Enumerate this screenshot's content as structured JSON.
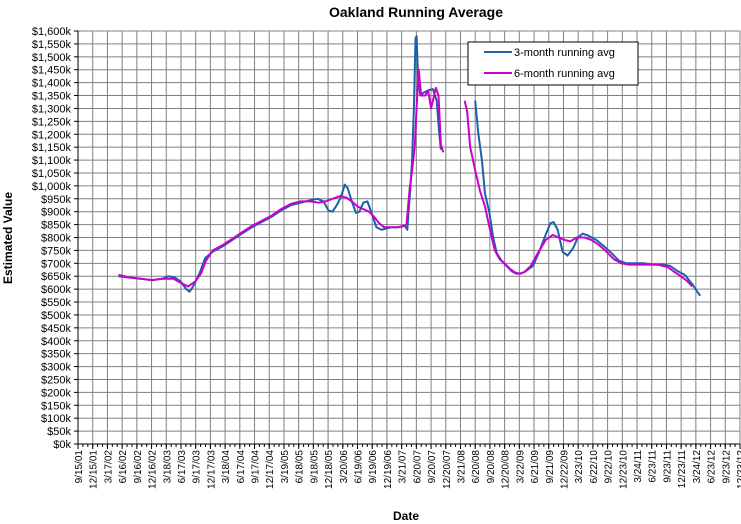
{
  "chart_data": {
    "type": "line",
    "title": "Oakland Running Average",
    "xlabel": "Date",
    "ylabel": "Estimated Value",
    "ylim": [
      0,
      1600000
    ],
    "yticks": [
      "$0k",
      "$50k",
      "$100k",
      "$150k",
      "$200k",
      "$250k",
      "$300k",
      "$350k",
      "$400k",
      "$450k",
      "$500k",
      "$550k",
      "$600k",
      "$650k",
      "$700k",
      "$750k",
      "$800k",
      "$850k",
      "$900k",
      "$950k",
      "$1,000k",
      "$1,050k",
      "$1,100k",
      "$1,150k",
      "$1,200k",
      "$1,250k",
      "$1,300k",
      "$1,350k",
      "$1,400k",
      "$1,450k",
      "$1,500k",
      "$1,550k",
      "$1,600k"
    ],
    "xlim": [
      "2001-09-15",
      "2012-12-23"
    ],
    "xticks": [
      "9/15/01",
      "12/15/01",
      "3/17/02",
      "6/16/02",
      "9/16/02",
      "12/16/02",
      "3/18/03",
      "6/17/03",
      "9/17/03",
      "12/17/03",
      "3/18/04",
      "6/17/04",
      "9/17/04",
      "12/17/04",
      "3/19/05",
      "6/18/05",
      "9/18/05",
      "12/18/05",
      "3/20/06",
      "6/19/06",
      "9/19/06",
      "12/19/06",
      "3/21/07",
      "6/20/07",
      "9/20/07",
      "12/20/07",
      "3/21/08",
      "6/20/08",
      "9/20/08",
      "12/20/08",
      "3/22/09",
      "6/21/09",
      "9/21/09",
      "12/22/09",
      "3/23/10",
      "6/22/10",
      "9/22/10",
      "12/23/10",
      "3/24/11",
      "6/23/11",
      "9/23/11",
      "12/23/11",
      "3/24/12",
      "6/23/12",
      "9/23/12",
      "12/23/12"
    ],
    "grid": true,
    "legend": "top-right",
    "series": [
      {
        "name": "3-month running avg",
        "color": "#1F5FA8",
        "segments": [
          [
            [
              "2002-05-25",
              650000
            ],
            [
              "2002-08-01",
              645000
            ],
            [
              "2002-10-10",
              640000
            ],
            [
              "2002-12-20",
              635000
            ],
            [
              "2003-02-20",
              640000
            ],
            [
              "2003-04-01",
              650000
            ],
            [
              "2003-05-10",
              645000
            ],
            [
              "2003-06-15",
              630000
            ],
            [
              "2003-07-20",
              600000
            ],
            [
              "2003-08-10",
              590000
            ],
            [
              "2003-09-01",
              610000
            ],
            [
              "2003-10-10",
              660000
            ],
            [
              "2003-11-15",
              720000
            ],
            [
              "2003-12-31",
              745000
            ],
            [
              "2004-03-01",
              765000
            ],
            [
              "2004-05-01",
              790000
            ],
            [
              "2004-07-01",
              815000
            ],
            [
              "2004-09-01",
              840000
            ],
            [
              "2004-11-01",
              860000
            ],
            [
              "2005-01-01",
              880000
            ],
            [
              "2005-03-01",
              905000
            ],
            [
              "2005-05-01",
              925000
            ],
            [
              "2005-07-01",
              935000
            ],
            [
              "2005-09-01",
              945000
            ],
            [
              "2005-10-15",
              950000
            ],
            [
              "2005-11-20",
              940000
            ],
            [
              "2005-12-20",
              905000
            ],
            [
              "2006-01-15",
              900000
            ],
            [
              "2006-02-15",
              930000
            ],
            [
              "2006-03-10",
              960000
            ],
            [
              "2006-04-01",
              1005000
            ],
            [
              "2006-04-20",
              990000
            ],
            [
              "2006-05-15",
              940000
            ],
            [
              "2006-06-10",
              895000
            ],
            [
              "2006-07-01",
              900000
            ],
            [
              "2006-07-25",
              935000
            ],
            [
              "2006-08-20",
              940000
            ],
            [
              "2006-09-15",
              895000
            ],
            [
              "2006-10-15",
              840000
            ],
            [
              "2006-11-15",
              830000
            ],
            [
              "2006-12-15",
              835000
            ],
            [
              "2007-01-20",
              840000
            ],
            [
              "2007-03-01",
              840000
            ],
            [
              "2007-04-10",
              845000
            ],
            [
              "2007-04-25",
              830000
            ],
            [
              "2007-05-15",
              1000000
            ],
            [
              "2007-05-25",
              1100000
            ],
            [
              "2007-06-05",
              1300000
            ],
            [
              "2007-06-15",
              1570000
            ],
            [
              "2007-06-22",
              1580000
            ],
            [
              "2007-07-01",
              1420000
            ],
            [
              "2007-07-15",
              1350000
            ],
            [
              "2007-08-01",
              1360000
            ],
            [
              "2007-09-01",
              1370000
            ],
            [
              "2007-10-01",
              1375000
            ],
            [
              "2007-10-25",
              1330000
            ],
            [
              "2007-11-10",
              1200000
            ],
            [
              "2007-11-20",
              1140000
            ]
          ],
          [
            [
              "2008-06-20",
              1330000
            ],
            [
              "2008-07-10",
              1200000
            ],
            [
              "2008-08-01",
              1100000
            ],
            [
              "2008-08-20",
              970000
            ],
            [
              "2008-09-15",
              900000
            ],
            [
              "2008-10-10",
              800000
            ],
            [
              "2008-11-01",
              740000
            ],
            [
              "2008-12-01",
              710000
            ],
            [
              "2009-01-01",
              690000
            ],
            [
              "2009-02-01",
              670000
            ],
            [
              "2009-03-01",
              660000
            ],
            [
              "2009-04-01",
              660000
            ],
            [
              "2009-05-01",
              670000
            ],
            [
              "2009-06-15",
              690000
            ],
            [
              "2009-07-20",
              740000
            ],
            [
              "2009-09-01",
              810000
            ],
            [
              "2009-10-01",
              855000
            ],
            [
              "2009-10-20",
              860000
            ],
            [
              "2009-11-15",
              830000
            ],
            [
              "2009-12-15",
              745000
            ],
            [
              "2010-01-15",
              730000
            ],
            [
              "2010-02-20",
              760000
            ],
            [
              "2010-03-20",
              800000
            ],
            [
              "2010-04-20",
              815000
            ],
            [
              "2010-06-01",
              805000
            ],
            [
              "2010-07-15",
              790000
            ],
            [
              "2010-09-01",
              765000
            ],
            [
              "2010-10-15",
              740000
            ],
            [
              "2010-12-01",
              710000
            ],
            [
              "2011-01-15",
              700000
            ],
            [
              "2011-03-01",
              700000
            ],
            [
              "2011-05-01",
              700000
            ],
            [
              "2011-07-01",
              695000
            ],
            [
              "2011-09-01",
              695000
            ],
            [
              "2011-10-15",
              690000
            ],
            [
              "2011-12-01",
              670000
            ],
            [
              "2012-01-15",
              655000
            ],
            [
              "2012-03-01",
              620000
            ],
            [
              "2012-04-01",
              590000
            ],
            [
              "2012-04-20",
              575000
            ]
          ]
        ]
      },
      {
        "name": "6-month running avg",
        "color": "#CC00CC",
        "segments": [
          [
            [
              "2002-05-25",
              655000
            ],
            [
              "2002-08-01",
              645000
            ],
            [
              "2002-10-10",
              640000
            ],
            [
              "2002-12-20",
              635000
            ],
            [
              "2003-02-20",
              640000
            ],
            [
              "2003-05-01",
              640000
            ],
            [
              "2003-06-15",
              625000
            ],
            [
              "2003-08-01",
              610000
            ],
            [
              "2003-09-15",
              630000
            ],
            [
              "2003-10-20",
              660000
            ],
            [
              "2003-11-20",
              710000
            ],
            [
              "2004-01-01",
              750000
            ],
            [
              "2004-03-01",
              770000
            ],
            [
              "2004-05-01",
              795000
            ],
            [
              "2004-07-01",
              820000
            ],
            [
              "2004-09-01",
              845000
            ],
            [
              "2004-11-01",
              865000
            ],
            [
              "2005-01-01",
              885000
            ],
            [
              "2005-03-01",
              910000
            ],
            [
              "2005-05-01",
              930000
            ],
            [
              "2005-07-01",
              940000
            ],
            [
              "2005-09-01",
              940000
            ],
            [
              "2005-10-20",
              935000
            ],
            [
              "2005-12-01",
              940000
            ],
            [
              "2006-01-15",
              950000
            ],
            [
              "2006-03-01",
              960000
            ],
            [
              "2006-04-10",
              955000
            ],
            [
              "2006-05-15",
              940000
            ],
            [
              "2006-06-20",
              920000
            ],
            [
              "2006-07-25",
              910000
            ],
            [
              "2006-08-30",
              900000
            ],
            [
              "2006-10-01",
              880000
            ],
            [
              "2006-11-01",
              855000
            ],
            [
              "2006-12-01",
              840000
            ],
            [
              "2007-01-15",
              840000
            ],
            [
              "2007-03-01",
              840000
            ],
            [
              "2007-04-01",
              845000
            ],
            [
              "2007-04-20",
              850000
            ],
            [
              "2007-05-10",
              990000
            ],
            [
              "2007-05-25",
              1060000
            ],
            [
              "2007-06-10",
              1150000
            ],
            [
              "2007-06-25",
              1340000
            ],
            [
              "2007-07-05",
              1450000
            ],
            [
              "2007-07-20",
              1350000
            ],
            [
              "2007-08-15",
              1350000
            ],
            [
              "2007-09-01",
              1370000
            ],
            [
              "2007-09-20",
              1300000
            ],
            [
              "2007-10-05",
              1340000
            ],
            [
              "2007-10-20",
              1380000
            ],
            [
              "2007-11-05",
              1350000
            ],
            [
              "2007-11-20",
              1160000
            ],
            [
              "2007-12-05",
              1130000
            ]
          ],
          [
            [
              "2008-04-15",
              1330000
            ],
            [
              "2008-05-01",
              1290000
            ],
            [
              "2008-05-20",
              1150000
            ],
            [
              "2008-06-20",
              1060000
            ],
            [
              "2008-07-20",
              980000
            ],
            [
              "2008-08-20",
              920000
            ],
            [
              "2008-09-20",
              830000
            ],
            [
              "2008-10-20",
              750000
            ],
            [
              "2008-11-20",
              715000
            ],
            [
              "2008-12-20",
              700000
            ],
            [
              "2009-01-20",
              680000
            ],
            [
              "2009-02-20",
              665000
            ],
            [
              "2009-03-20",
              660000
            ],
            [
              "2009-04-20",
              665000
            ],
            [
              "2009-06-01",
              690000
            ],
            [
              "2009-07-15",
              740000
            ],
            [
              "2009-09-01",
              790000
            ],
            [
              "2009-10-15",
              810000
            ],
            [
              "2009-11-20",
              800000
            ],
            [
              "2010-01-01",
              790000
            ],
            [
              "2010-02-01",
              785000
            ],
            [
              "2010-03-15",
              800000
            ],
            [
              "2010-05-01",
              800000
            ],
            [
              "2010-06-15",
              790000
            ],
            [
              "2010-08-01",
              770000
            ],
            [
              "2010-09-15",
              745000
            ],
            [
              "2010-11-01",
              715000
            ],
            [
              "2010-12-15",
              700000
            ],
            [
              "2011-02-01",
              695000
            ],
            [
              "2011-04-01",
              695000
            ],
            [
              "2011-06-01",
              695000
            ],
            [
              "2011-08-01",
              695000
            ],
            [
              "2011-10-01",
              685000
            ],
            [
              "2011-11-15",
              665000
            ],
            [
              "2012-01-01",
              645000
            ],
            [
              "2012-02-01",
              630000
            ],
            [
              "2012-03-01",
              610000
            ]
          ]
        ]
      }
    ]
  }
}
